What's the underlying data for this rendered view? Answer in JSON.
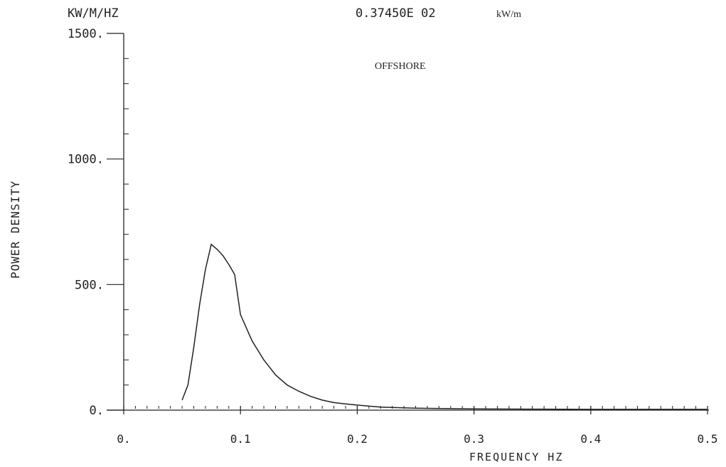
{
  "header": {
    "unit_label": "KW/M/HZ",
    "total_value": "0.37450E 02",
    "total_unit": "kW/m",
    "annotation": "OFFSHORE"
  },
  "chart_data": {
    "type": "line",
    "title": "",
    "xlabel": "FREQUENCY HZ",
    "ylabel": "POWER DENSITY",
    "xlim": [
      0,
      0.5
    ],
    "ylim": [
      0,
      1500
    ],
    "x_ticks": [
      0,
      0.1,
      0.2,
      0.3,
      0.4,
      0.5
    ],
    "x_tick_labels": [
      "0.",
      "0.1",
      "0.2",
      "0.3",
      "0.4",
      "0.5"
    ],
    "y_ticks": [
      0,
      500,
      1000,
      1500
    ],
    "y_tick_labels": [
      "0.",
      "500.",
      "1000.",
      "1500."
    ],
    "series": [
      {
        "x": [
          0.05,
          0.055,
          0.06,
          0.065,
          0.07,
          0.075,
          0.08,
          0.085,
          0.09,
          0.095,
          0.1,
          0.11,
          0.12,
          0.13,
          0.14,
          0.15,
          0.16,
          0.17,
          0.18,
          0.19,
          0.2,
          0.22,
          0.25,
          0.28,
          0.3,
          0.35,
          0.4,
          0.45,
          0.5
        ],
        "values": [
          40,
          100,
          250,
          420,
          560,
          660,
          640,
          615,
          580,
          540,
          380,
          275,
          200,
          140,
          100,
          75,
          55,
          40,
          30,
          25,
          20,
          12,
          8,
          6,
          5,
          4,
          3,
          3,
          3
        ]
      }
    ],
    "grid": false,
    "colors": {
      "line": "#222222",
      "axis": "#222222"
    }
  }
}
